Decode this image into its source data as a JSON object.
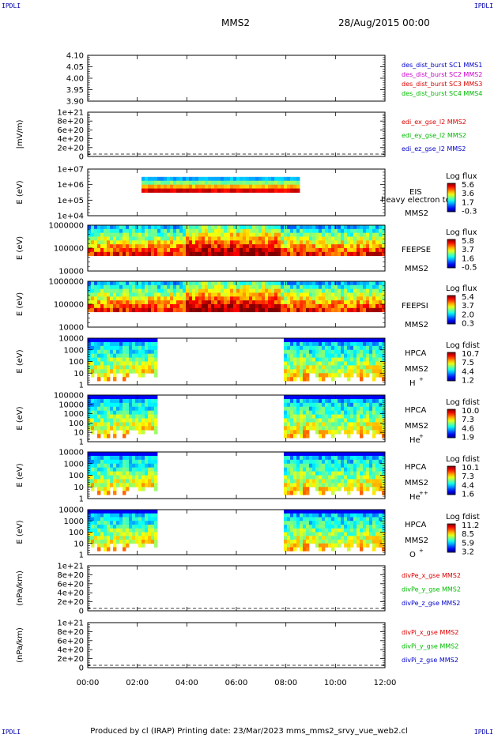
{
  "corners": {
    "tl": "IPDLI",
    "tr": "IPDLI",
    "bl": "IPDLI",
    "br": "IPDLI"
  },
  "header": {
    "spacecraft": "MMS2",
    "datetime": "28/Aug/2015 00:00"
  },
  "footer": {
    "text": "Produced by cl (IRAP)   Printing date: 23/Mar/2023   mms_mms2_srvy_vue_web2.cl"
  },
  "colors": {
    "sc1": "#0000cc",
    "sc2": "#cc00cc",
    "sc3": "#dd0000",
    "sc4": "#00bb00",
    "x": "#dd0000",
    "y": "#00bb00",
    "z": "#0000cc"
  },
  "chart_data": {
    "type": "heatmap",
    "x_axis": {
      "range": [
        "00:00",
        "12:00"
      ],
      "ticks": [
        "00:00",
        "02:00",
        "04:00",
        "06:00",
        "08:00",
        "10:00",
        "12:00"
      ]
    },
    "panels": [
      {
        "kind": "line",
        "ylabel": "",
        "ylim": [
          3.9,
          4.1
        ],
        "ticks": [
          "4.10",
          "4.05",
          "4.00",
          "3.95",
          "3.90"
        ],
        "legend": [
          {
            "name": "des_dist_burst SC1 MMS1",
            "color": "sc1"
          },
          {
            "name": "des_dist_burst SC2 MMS2",
            "color": "sc2"
          },
          {
            "name": "des_dist_burst SC3 MMS3",
            "color": "sc3"
          },
          {
            "name": "des_dist_burst SC4 MMS4",
            "color": "sc4"
          }
        ]
      },
      {
        "kind": "line",
        "ylabel": "|mV/m)",
        "dashed_zero": true,
        "ticks": [
          "1e+21",
          "8e+20",
          "6e+20",
          "4e+20",
          "2e+20",
          "0"
        ],
        "legend": [
          {
            "name": "edi_ex_gse_l2 MMS2",
            "color": "x"
          },
          {
            "name": "edi_ey_gse_l2 MMS2",
            "color": "y"
          },
          {
            "name": "edi_ez_gse_l2 MMS2",
            "color": "z"
          }
        ]
      },
      {
        "kind": "spec",
        "ylabel": "E (eV)",
        "ticks": [
          "1e+07",
          "1e+06",
          "1e+05",
          "1e+04"
        ],
        "labels": [
          "EIS",
          "heavy electron to",
          "MMS2"
        ],
        "cbar_title": "Log flux",
        "cbar_ticks": [
          "5.6",
          "3.6",
          "1.7",
          "-0.3"
        ],
        "coverage": [
          [
            2.2,
            8.6
          ]
        ]
      },
      {
        "kind": "spec",
        "ylabel": "E (eV)",
        "ticks": [
          "1000000",
          "100000",
          "10000"
        ],
        "labels": [
          "FEEPSE",
          "MMS2"
        ],
        "cbar_title": "Log flux",
        "cbar_ticks": [
          "5.8",
          "3.7",
          "1.6",
          "-0.5"
        ],
        "coverage": [
          [
            0,
            12
          ]
        ]
      },
      {
        "kind": "spec",
        "ylabel": "E (eV)",
        "ticks": [
          "1000000",
          "100000",
          "10000"
        ],
        "labels": [
          "FEEPSI",
          "MMS2"
        ],
        "cbar_title": "Log flux",
        "cbar_ticks": [
          "5.4",
          "3.7",
          "2.0",
          "0.3"
        ],
        "coverage": [
          [
            0,
            12
          ]
        ]
      },
      {
        "kind": "spec",
        "ylabel": "E (eV)",
        "ticks": [
          "10000",
          "1000",
          "100",
          "10",
          "1"
        ],
        "labels": [
          "HPCA",
          "MMS2",
          "H",
          "+"
        ],
        "cbar_title": "Log fdist",
        "cbar_ticks": [
          "10.7",
          "7.5",
          "4.4",
          "1.2"
        ],
        "coverage": [
          [
            0,
            2.85
          ],
          [
            7.95,
            12
          ]
        ]
      },
      {
        "kind": "spec",
        "ylabel": "E (eV)",
        "ticks": [
          "100000",
          "10000",
          "1000",
          "100",
          "10",
          "1"
        ],
        "labels": [
          "HPCA",
          "MMS2",
          "He",
          "+"
        ],
        "cbar_title": "Log fdist",
        "cbar_ticks": [
          "10.0",
          "7.3",
          "4.6",
          "1.9"
        ],
        "coverage": [
          [
            0,
            2.85
          ],
          [
            7.95,
            12
          ]
        ]
      },
      {
        "kind": "spec",
        "ylabel": "E (eV)",
        "ticks": [
          "10000",
          "1000",
          "100",
          "10",
          "1"
        ],
        "labels": [
          "HPCA",
          "MMS2",
          "He",
          "++"
        ],
        "cbar_title": "Log fdist",
        "cbar_ticks": [
          "10.1",
          "7.3",
          "4.4",
          "1.6"
        ],
        "coverage": [
          [
            0,
            2.85
          ],
          [
            7.95,
            12
          ]
        ]
      },
      {
        "kind": "spec",
        "ylabel": "E (eV)",
        "ticks": [
          "10000",
          "1000",
          "100",
          "10",
          "1"
        ],
        "labels": [
          "HPCA",
          "MMS2",
          "O",
          "+"
        ],
        "cbar_title": "Log fdist",
        "cbar_ticks": [
          "11.2",
          "8.5",
          "5.9",
          "3.2"
        ],
        "coverage": [
          [
            0,
            2.85
          ],
          [
            7.95,
            12
          ]
        ]
      },
      {
        "kind": "line",
        "ylabel": "(nPa/km)",
        "dashed_zero": true,
        "ticks": [
          "1e+21",
          "8e+20",
          "6e+20",
          "4e+20",
          "2e+20",
          "0"
        ],
        "legend": [
          {
            "name": "divPe_x_gse MMS2",
            "color": "x"
          },
          {
            "name": "divPe_y_gse MMS2",
            "color": "y"
          },
          {
            "name": "divPe_z_gse MMS2",
            "color": "z"
          }
        ]
      },
      {
        "kind": "line",
        "ylabel": "(nPa/km)",
        "dashed_zero": true,
        "ticks": [
          "1e+21",
          "8e+20",
          "6e+20",
          "4e+20",
          "2e+20",
          "0"
        ],
        "legend": [
          {
            "name": "divPi_x_gse MMS2",
            "color": "x"
          },
          {
            "name": "divPi_y_gse MMS2",
            "color": "y"
          },
          {
            "name": "divPi_z_gse MMS2",
            "color": "z"
          }
        ]
      }
    ]
  }
}
